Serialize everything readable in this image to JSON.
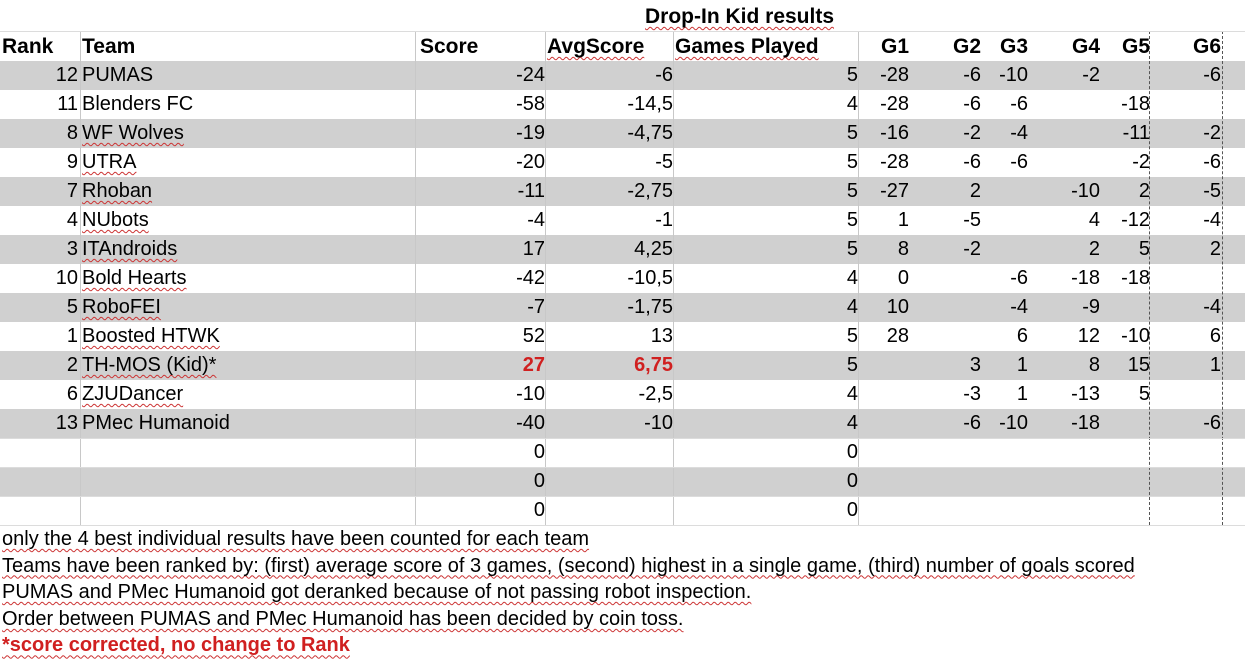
{
  "title": "Drop-In Kid results",
  "headers": {
    "rank": "Rank",
    "team": "Team",
    "score": "Score",
    "avg": "AvgScore",
    "games": "Games Played",
    "g1": "G1",
    "g2": "G2",
    "g3": "G3",
    "g4": "G4",
    "g5": "G5",
    "g6": "G6"
  },
  "rows": [
    {
      "rank": "12",
      "team": "PUMAS",
      "score": "-24",
      "avg": "-6",
      "games": "5",
      "g1": "-28",
      "g2": "-6",
      "g3": "-10",
      "g4": "-2",
      "g5": "",
      "g6": "-6"
    },
    {
      "rank": "11",
      "team": "Blenders FC",
      "score": "-58",
      "avg": "-14,5",
      "games": "4",
      "g1": "-28",
      "g2": "-6",
      "g3": "-6",
      "g4": "",
      "g5": "-18",
      "g6": ""
    },
    {
      "rank": "8",
      "team": "WF Wolves",
      "score": "-19",
      "avg": "-4,75",
      "games": "5",
      "g1": "-16",
      "g2": "-2",
      "g3": "-4",
      "g4": "",
      "g5": "-11",
      "g6": "-2"
    },
    {
      "rank": "9",
      "team": "UTRA",
      "score": "-20",
      "avg": "-5",
      "games": "5",
      "g1": "-28",
      "g2": "-6",
      "g3": "-6",
      "g4": "",
      "g5": "-2",
      "g6": "-6"
    },
    {
      "rank": "7",
      "team": "Rhoban",
      "score": "-11",
      "avg": "-2,75",
      "games": "5",
      "g1": "-27",
      "g2": "2",
      "g3": "",
      "g4": "-10",
      "g5": "2",
      "g6": "-5"
    },
    {
      "rank": "4",
      "team": "NUbots",
      "score": "-4",
      "avg": "-1",
      "games": "5",
      "g1": "1",
      "g2": "-5",
      "g3": "",
      "g4": "4",
      "g5": "-12",
      "g6": "-4"
    },
    {
      "rank": "3",
      "team": "ITAndroids",
      "score": "17",
      "avg": "4,25",
      "games": "5",
      "g1": "8",
      "g2": "-2",
      "g3": "",
      "g4": "2",
      "g5": "5",
      "g6": "2"
    },
    {
      "rank": "10",
      "team": "Bold Hearts",
      "score": "-42",
      "avg": "-10,5",
      "games": "4",
      "g1": "0",
      "g2": "",
      "g3": "-6",
      "g4": "-18",
      "g5": "-18",
      "g6": ""
    },
    {
      "rank": "5",
      "team": "RoboFEI",
      "score": "-7",
      "avg": "-1,75",
      "games": "4",
      "g1": "10",
      "g2": "",
      "g3": "-4",
      "g4": "-9",
      "g5": "",
      "g6": "-4"
    },
    {
      "rank": "1",
      "team": "Boosted HTWK",
      "score": "52",
      "avg": "13",
      "games": "5",
      "g1": "28",
      "g2": "",
      "g3": "6",
      "g4": "12",
      "g5": "-10",
      "g6": "6"
    },
    {
      "rank": "2",
      "team": "TH-MOS (Kid)*",
      "score": "27",
      "avg": "6,75",
      "games": "5",
      "g1": "",
      "g2": "3",
      "g3": "1",
      "g4": "8",
      "g5": "15",
      "g6": "1",
      "highlight": true
    },
    {
      "rank": "6",
      "team": "ZJUDancer",
      "score": "-10",
      "avg": "-2,5",
      "games": "4",
      "g1": "",
      "g2": "-3",
      "g3": "1",
      "g4": "-13",
      "g5": "5",
      "g6": ""
    },
    {
      "rank": "13",
      "team": "PMec Humanoid",
      "score": "-40",
      "avg": "-10",
      "games": "4",
      "g1": "",
      "g2": "-6",
      "g3": "-10",
      "g4": "-18",
      "g5": "",
      "g6": "-6"
    },
    {
      "rank": "",
      "team": "",
      "score": "0",
      "avg": "",
      "games": "0",
      "g1": "",
      "g2": "",
      "g3": "",
      "g4": "",
      "g5": "",
      "g6": ""
    },
    {
      "rank": "",
      "team": "",
      "score": "0",
      "avg": "",
      "games": "0",
      "g1": "",
      "g2": "",
      "g3": "",
      "g4": "",
      "g5": "",
      "g6": ""
    },
    {
      "rank": "",
      "team": "",
      "score": "0",
      "avg": "",
      "games": "0",
      "g1": "",
      "g2": "",
      "g3": "",
      "g4": "",
      "g5": "",
      "g6": ""
    }
  ],
  "notes": [
    "only the 4 best individual results have been counted for each team",
    "Teams have been ranked by: (first) average score of 3 games, (second) highest in a single game, (third) number of goals scored",
    "PUMAS and PMec Humanoid got deranked because of not passing robot inspection.",
    "Order between PUMAS and PMec Humanoid has been decided by coin toss.",
    "*score corrected, no change to Rank"
  ],
  "colors": {
    "band": "#d0d0d0",
    "highlight": "#d02020",
    "spellcheck": "#cc3333"
  }
}
